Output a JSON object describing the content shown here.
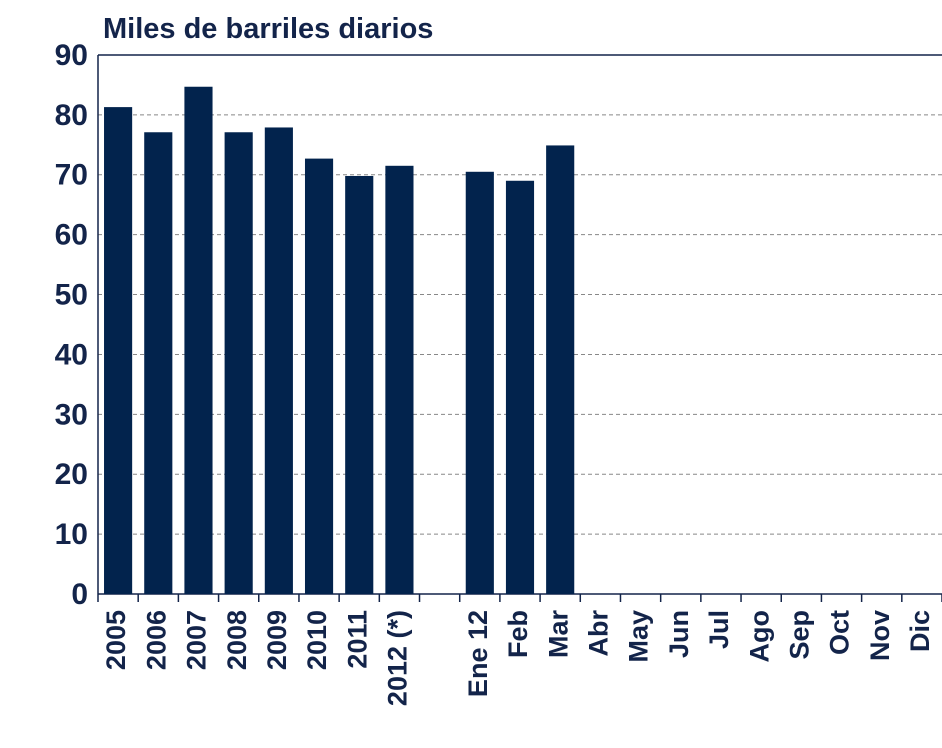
{
  "chart_data": {
    "type": "bar",
    "title": "Miles de barriles diarios",
    "categories": [
      "2005",
      "2006",
      "2007",
      "2008",
      "2009",
      "2010",
      "2011",
      "2012 (*)",
      null,
      "Ene 12",
      "Feb",
      "Mar",
      "Abr",
      "May",
      "Jun",
      "Jul",
      "Ago",
      "Sep",
      "Oct",
      "Nov",
      "Dic"
    ],
    "values": [
      81.3,
      77.1,
      84.7,
      77.1,
      77.9,
      72.7,
      69.8,
      71.5,
      null,
      70.5,
      69.0,
      74.9,
      null,
      null,
      null,
      null,
      null,
      null,
      null,
      null,
      null
    ],
    "color": "#02234d",
    "ylim": [
      0,
      90
    ],
    "yticks": [
      0,
      10,
      20,
      30,
      40,
      50,
      60,
      70,
      80,
      90
    ],
    "grid": true
  }
}
